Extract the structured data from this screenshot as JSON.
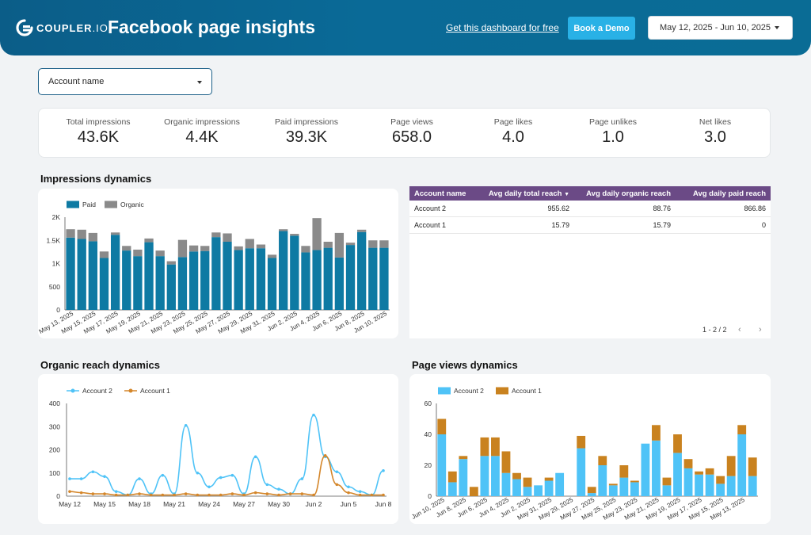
{
  "header": {
    "logo_text": "COUPLER",
    "logo_suffix": ".IO",
    "title": "Facebook page insights",
    "free_link": "Get this dashboard for free",
    "demo_button": "Book a Demo",
    "date_range": "May 12, 2025 - Jun 10, 2025",
    "colors": {
      "bg": "#0b5d88",
      "button": "#29b1e6"
    }
  },
  "filters": {
    "account_placeholder": "Account name"
  },
  "kpis": [
    {
      "label": "Total impressions",
      "value": "43.6K"
    },
    {
      "label": "Organic impressions",
      "value": "4.4K"
    },
    {
      "label": "Paid impressions",
      "value": "39.3K"
    },
    {
      "label": "Page views",
      "value": "658.0"
    },
    {
      "label": "Page likes",
      "value": "4.0"
    },
    {
      "label": "Page unlikes",
      "value": "1.0"
    },
    {
      "label": "Net likes",
      "value": "3.0"
    }
  ],
  "sections": {
    "impressions": "Impressions dynamics",
    "organic_reach": "Organic reach dynamics",
    "page_views": "Page views dynamics"
  },
  "table": {
    "columns": [
      "Account name",
      "Avg daily total reach",
      "Avg daily organic reach",
      "Avg daily paid reach"
    ],
    "sort_indicator": "▼",
    "rows": [
      [
        "Account 2",
        "955.62",
        "88.76",
        "866.86"
      ],
      [
        "Account 1",
        "15.79",
        "15.79",
        "0"
      ]
    ],
    "pagination": "1 - 2 / 2",
    "prev_icon": "‹",
    "next_icon": "›",
    "header_color": "#6b4a86"
  },
  "chart_data": [
    {
      "type": "bar",
      "stacked": true,
      "title": "Impressions dynamics",
      "categories": [
        "May 13, 2025",
        "May 14, 2025",
        "May 15, 2025",
        "May 16, 2025",
        "May 17, 2025",
        "May 18, 2025",
        "May 19, 2025",
        "May 20, 2025",
        "May 21, 2025",
        "May 22, 2025",
        "May 23, 2025",
        "May 24, 2025",
        "May 25, 2025",
        "May 26, 2025",
        "May 27, 2025",
        "May 28, 2025",
        "May 29, 2025",
        "May 30, 2025",
        "May 31, 2025",
        "Jun 1, 2025",
        "Jun 2, 2025",
        "Jun 3, 2025",
        "Jun 4, 2025",
        "Jun 5, 2025",
        "Jun 6, 2025",
        "Jun 7, 2025",
        "Jun 8, 2025",
        "Jun 9, 2025",
        "Jun 10, 2025"
      ],
      "tick_labels": [
        "May 13, 2025",
        "May 15, 2025",
        "May 17, 2025",
        "May 19, 2025",
        "May 21, 2025",
        "May 23, 2025",
        "May 25, 2025",
        "May 27, 2025",
        "May 29, 2025",
        "May 31, 2025",
        "Jun 2, 2025",
        "Jun 4, 2025",
        "Jun 6, 2025",
        "Jun 8, 2025",
        "Jun 10, 2025"
      ],
      "series": [
        {
          "name": "Paid",
          "color": "#0e7aa3",
          "values": [
            1560,
            1530,
            1480,
            1120,
            1620,
            1280,
            1160,
            1460,
            1160,
            980,
            1140,
            1260,
            1270,
            1570,
            1470,
            1290,
            1330,
            1330,
            1120,
            1700,
            1600,
            1240,
            1290,
            1340,
            1130,
            1400,
            1680,
            1340,
            1340
          ]
        },
        {
          "name": "Organic",
          "color": "#8a8a8a",
          "values": [
            180,
            200,
            180,
            140,
            50,
            100,
            140,
            80,
            120,
            70,
            370,
            130,
            110,
            100,
            180,
            80,
            200,
            80,
            70,
            40,
            40,
            140,
            690,
            130,
            530,
            50,
            50,
            160,
            160
          ]
        }
      ],
      "y_ticks": [
        "0",
        "500",
        "1K",
        "1.5K",
        "2K"
      ],
      "ylim": [
        0,
        2000
      ],
      "legend": "top-left"
    },
    {
      "type": "line",
      "title": "Organic reach dynamics",
      "x_ticks": [
        "May 12",
        "May 15",
        "May 18",
        "May 21",
        "May 24",
        "May 27",
        "May 30",
        "Jun 2",
        "Jun 5",
        "Jun 8"
      ],
      "series": [
        {
          "name": "Account 2",
          "color": "#4fc3f7",
          "values": [
            75,
            75,
            105,
            85,
            20,
            5,
            75,
            10,
            90,
            10,
            305,
            100,
            40,
            80,
            90,
            10,
            170,
            50,
            30,
            10,
            75,
            350,
            170,
            105,
            40,
            20,
            5,
            110
          ]
        },
        {
          "name": "Account 1",
          "color": "#d4862a",
          "values": [
            20,
            15,
            10,
            10,
            5,
            5,
            10,
            5,
            5,
            5,
            10,
            5,
            5,
            5,
            10,
            5,
            15,
            10,
            5,
            10,
            10,
            5,
            175,
            50,
            15,
            5,
            5,
            5
          ]
        }
      ],
      "y_ticks": [
        "0",
        "100",
        "200",
        "300",
        "400"
      ],
      "ylim": [
        0,
        400
      ],
      "legend": "top-left"
    },
    {
      "type": "bar",
      "stacked": true,
      "title": "Page views dynamics",
      "categories": [
        "Jun 10, 2025",
        "Jun 9, 2025",
        "Jun 8, 2025",
        "Jun 7, 2025",
        "Jun 6, 2025",
        "Jun 5, 2025",
        "Jun 4, 2025",
        "Jun 3, 2025",
        "Jun 2, 2025",
        "Jun 1, 2025",
        "May 31, 2025",
        "May 30, 2025",
        "May 29, 2025",
        "May 28, 2025",
        "May 27, 2025",
        "May 26, 2025",
        "May 25, 2025",
        "May 24, 2025",
        "May 23, 2025",
        "May 22, 2025",
        "May 21, 2025",
        "May 20, 2025",
        "May 19, 2025",
        "May 18, 2025",
        "May 17, 2025",
        "May 16, 2025",
        "May 15, 2025",
        "May 14, 2025",
        "May 13, 2025",
        "May 12, 2025"
      ],
      "tick_labels": [
        "Jun 10, 2025",
        "Jun 8, 2025",
        "Jun 6, 2025",
        "Jun 4, 2025",
        "Jun 2, 2025",
        "May 31, 2025",
        "May 29, 2025",
        "May 27, 2025",
        "May 25, 2025",
        "May 23, 2025",
        "May 21, 2025",
        "May 19, 2025",
        "May 17, 2025",
        "May 15, 2025",
        "May 13, 2025"
      ],
      "series": [
        {
          "name": "Account 2",
          "color": "#4fc3f7",
          "values": [
            40,
            9,
            24,
            0,
            26,
            26,
            15,
            11,
            6,
            7,
            10,
            15,
            0,
            31,
            2,
            20,
            7,
            12,
            9,
            34,
            36,
            7,
            28,
            18,
            14,
            14,
            8,
            13,
            40,
            13
          ]
        },
        {
          "name": "Account 1",
          "color": "#c9821f",
          "values": [
            10,
            7,
            2,
            6,
            12,
            12,
            14,
            4,
            6,
            0,
            2,
            0,
            0,
            8,
            4,
            6,
            1,
            8,
            1,
            0,
            10,
            5,
            12,
            6,
            2,
            4,
            5,
            13,
            6,
            12
          ]
        }
      ],
      "y_ticks": [
        "0",
        "20",
        "40",
        "60"
      ],
      "ylim": [
        0,
        60
      ],
      "legend": "top-left"
    }
  ]
}
